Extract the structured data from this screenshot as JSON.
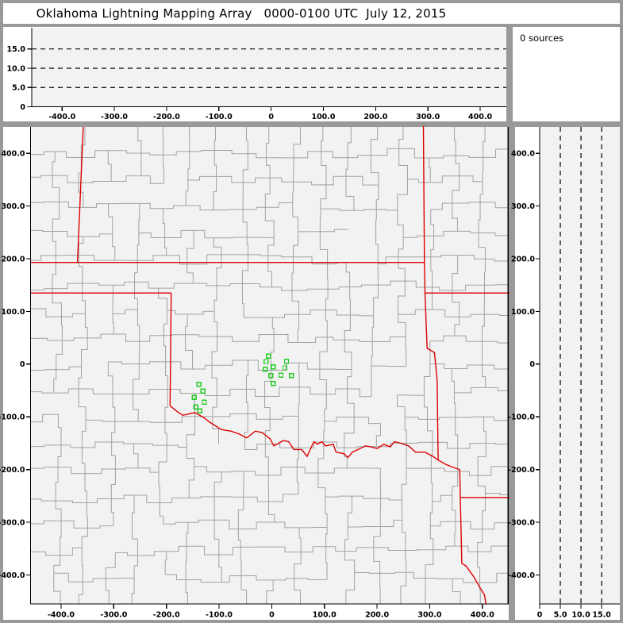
{
  "title": "Oklahoma Lightning Mapping Array   0000-0100 UTC  July 12, 2015",
  "source_panel": {
    "label": "0 sources",
    "count": 0
  },
  "colors": {
    "frame": "#999999",
    "plot_background": "#f2f2f2",
    "margin_background": "#ffffff",
    "axis": "#000000",
    "county_line": "#a2a2a2",
    "state_line": "#dc0000",
    "source_marker": "#22cc22",
    "dashed_line": "#000000"
  },
  "chart_data": [
    {
      "id": "ew_altitude_cross_section",
      "type": "scatter",
      "position": "top",
      "n_points": 0,
      "points": [],
      "x_range": [
        -458,
        450
      ],
      "y_range": [
        0,
        20.5
      ],
      "x_ticks": {
        "values": [
          -400,
          -300,
          -200,
          -100,
          0,
          100,
          200,
          300,
          400
        ],
        "labels": [
          "-400.0",
          "-300.0",
          "-200.0",
          "-100.0",
          "0",
          "100.0",
          "200.0",
          "300.0",
          "400.0"
        ]
      },
      "y_ticks": {
        "values": [
          0,
          5,
          10,
          15
        ],
        "labels": [
          "0",
          "5.0",
          "10.0",
          "15.0"
        ]
      },
      "dashed_y": [
        5,
        10,
        15
      ],
      "grid": "dashed-horizontal"
    },
    {
      "id": "plan_view_map",
      "type": "scatter",
      "position": "main",
      "marker": "open-square",
      "marker_size_px": 5,
      "n_points": 16,
      "points": [
        [
          -6.5,
          15.0
        ],
        [
          -10.5,
          5.0
        ],
        [
          2.5,
          -5.0
        ],
        [
          -12.5,
          -9.5
        ],
        [
          -1.5,
          -22.0
        ],
        [
          2.5,
          -37.0
        ],
        [
          17.5,
          -21.0
        ],
        [
          28.0,
          5.5
        ],
        [
          25.0,
          -7.0
        ],
        [
          37.5,
          -21.5
        ],
        [
          -138.0,
          -38.5
        ],
        [
          -130.5,
          -51.0
        ],
        [
          -147.0,
          -63.0
        ],
        [
          -128.0,
          -72.0
        ],
        [
          -144.0,
          -81.0
        ],
        [
          -136.5,
          -89.0
        ]
      ],
      "x_range": [
        -458,
        450
      ],
      "y_range": [
        -455,
        450
      ],
      "x_ticks": {
        "values": [
          -400,
          -300,
          -200,
          -100,
          0,
          100,
          200,
          300,
          400
        ],
        "labels": [
          "-400.0",
          "-300.0",
          "-200.0",
          "-100.0",
          "0",
          "100.0",
          "200.0",
          "300.0",
          "400.0"
        ]
      },
      "y_ticks": {
        "values": [
          400,
          300,
          200,
          100,
          0,
          -100,
          -200,
          -300,
          -400
        ],
        "labels": [
          "400.0",
          "300.0",
          "200.0",
          "100.0",
          "0",
          "-100.0",
          "-200.0",
          "-300.0",
          "-400.0"
        ]
      },
      "map_layers": [
        "county-boundaries",
        "state-boundaries"
      ],
      "state_borders": [
        {
          "name": "co-ks-border",
          "pts": [
            [
              -358,
              450
            ],
            [
              -369,
              193
            ]
          ]
        },
        {
          "name": "kansas-south-border-37n",
          "pts": [
            [
              -458,
              193
            ],
            [
              291,
              193
            ]
          ]
        },
        {
          "name": "panhandle-south-border-36-5n",
          "pts": [
            [
              -458,
              135
            ],
            [
              -191,
              135
            ]
          ]
        },
        {
          "name": "oklahoma-west-border-100w",
          "pts": [
            [
              -191,
              135
            ],
            [
              -193,
              -79
            ]
          ]
        },
        {
          "name": "ks-mo-ok-ar-border",
          "pts": [
            [
              288,
              452
            ],
            [
              290,
              193
            ],
            [
              291,
              135
            ],
            [
              295,
              30
            ],
            [
              309,
              22
            ],
            [
              314,
              -30
            ],
            [
              316,
              -182
            ]
          ]
        },
        {
          "name": "mo-ar-border-36-5n",
          "pts": [
            [
              291,
              135
            ],
            [
              452,
              135
            ]
          ]
        },
        {
          "name": "red-river-ok-tx-border",
          "pts": [
            [
              -193,
              -79
            ],
            [
              -181,
              -89
            ],
            [
              -169,
              -97
            ],
            [
              -146,
              -92
            ],
            [
              -128,
              -102
            ],
            [
              -118,
              -110
            ],
            [
              -96,
              -124
            ],
            [
              -78,
              -127
            ],
            [
              -63,
              -132
            ],
            [
              -48,
              -140
            ],
            [
              -31,
              -127
            ],
            [
              -18,
              -130
            ],
            [
              -3,
              -142
            ],
            [
              4,
              -155
            ],
            [
              22,
              -145
            ],
            [
              32,
              -147
            ],
            [
              42,
              -162
            ],
            [
              57,
              -162
            ],
            [
              67,
              -175
            ],
            [
              80,
              -147
            ],
            [
              87,
              -152
            ],
            [
              95,
              -147
            ],
            [
              102,
              -155
            ],
            [
              117,
              -152
            ],
            [
              122,
              -167
            ],
            [
              137,
              -170
            ],
            [
              145,
              -177
            ],
            [
              153,
              -167
            ],
            [
              168,
              -160
            ],
            [
              178,
              -155
            ],
            [
              188,
              -157
            ],
            [
              200,
              -160
            ],
            [
              213,
              -152
            ],
            [
              225,
              -157
            ],
            [
              233,
              -147
            ],
            [
              245,
              -150
            ],
            [
              260,
              -155
            ],
            [
              273,
              -167
            ],
            [
              291,
              -167
            ],
            [
              306,
              -175
            ],
            [
              316,
              -182
            ]
          ]
        },
        {
          "name": "tx-ar-red-river",
          "pts": [
            [
              316,
              -182
            ],
            [
              330,
              -190
            ],
            [
              345,
              -196
            ],
            [
              357,
              -200
            ]
          ]
        },
        {
          "name": "tx-ar-la-border-94w",
          "pts": [
            [
              357,
              -200
            ],
            [
              358,
              -253
            ],
            [
              361,
              -378
            ],
            [
              369,
              -383
            ],
            [
              384,
              -404
            ],
            [
              393,
              -420
            ],
            [
              404,
              -438
            ],
            [
              407,
              -456
            ]
          ]
        },
        {
          "name": "ar-la-border-33n",
          "pts": [
            [
              358,
              -253
            ],
            [
              452,
              -253
            ]
          ]
        }
      ]
    },
    {
      "id": "ns_altitude_cross_section",
      "type": "scatter",
      "position": "right",
      "n_points": 0,
      "points": [],
      "x_range": [
        0,
        19.4
      ],
      "y_range": [
        -455,
        450
      ],
      "x_ticks": {
        "values": [
          0,
          5,
          10,
          15
        ],
        "labels": [
          "0",
          "5.0",
          "10.0",
          "15.0"
        ]
      },
      "y_ticks": {
        "values": [
          400,
          300,
          200,
          100,
          0,
          -100,
          -200,
          -300,
          -400
        ],
        "labels": [
          "400.0",
          "300.0",
          "200.0",
          "100.0",
          "0",
          "-100.0",
          "-200.0",
          "-300.0",
          "-400.0"
        ]
      },
      "dashed_x": [
        5,
        10,
        15
      ],
      "grid": "dashed-vertical"
    }
  ]
}
